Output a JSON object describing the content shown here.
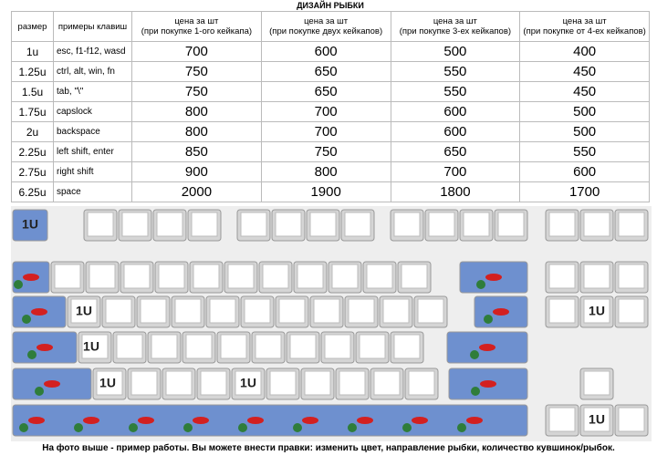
{
  "title": "ДИЗАЙН РЫБКИ",
  "table": {
    "header": [
      "размер",
      "примеры клавиш",
      "цена за шт\n(при покупке 1-ого кейкапа)",
      "цена за шт\n(при покупке двух кейкапов)",
      "цена за шт\n(при покупке 3-ех кейкапов)",
      "цена за шт\n(при покупке от 4-ех кейкапов)"
    ],
    "rows": [
      [
        "1u",
        "esc, f1-f12, wasd",
        "700",
        "600",
        "500",
        "400"
      ],
      [
        "1.25u",
        "ctrl, alt, win, fn",
        "750",
        "650",
        "550",
        "450"
      ],
      [
        "1.5u",
        "tab, \"\\\"",
        "750",
        "650",
        "550",
        "450"
      ],
      [
        "1.75u",
        "capslock",
        "800",
        "700",
        "600",
        "500"
      ],
      [
        "2u",
        "backspace",
        "800",
        "700",
        "600",
        "500"
      ],
      [
        "2.25u",
        "left shift, enter",
        "850",
        "750",
        "650",
        "550"
      ],
      [
        "2.75u",
        "right shift",
        "900",
        "800",
        "700",
        "600"
      ],
      [
        "6.25u",
        "space",
        "2000",
        "1900",
        "1800",
        "1700"
      ]
    ]
  },
  "keyboard": {
    "key_labels": [
      "1U",
      "1U",
      "1U",
      "1U",
      "1U",
      "1U",
      "1U"
    ]
  },
  "footer": "На фото выше - пример работы. Вы можете внести правки: изменить цвет, направление рыбки, количество кувшинок/рыбок."
}
